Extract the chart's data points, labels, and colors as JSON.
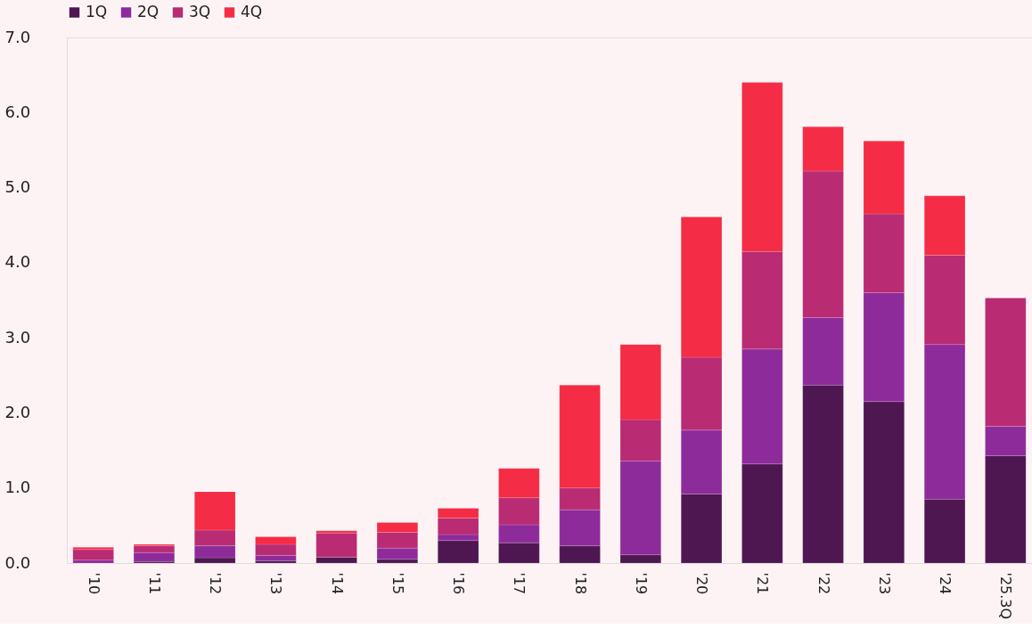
{
  "chart_data": {
    "type": "bar",
    "stacked": true,
    "categories": [
      "'10",
      "'11",
      "'12",
      "'13",
      "'14",
      "'15",
      "'16",
      "'17",
      "'18",
      "'19",
      "'20",
      "'21",
      "'22",
      "'23",
      "'24",
      "'25.3Q"
    ],
    "series": [
      {
        "name": "1Q",
        "color": "#4e1752",
        "values": [
          0,
          0.02,
          0.07,
          0.03,
          0.08,
          0.05,
          0.3,
          0.27,
          0.23,
          0.11,
          0.92,
          1.32,
          2.37,
          2.15,
          0.85,
          1.43
        ]
      },
      {
        "name": "2Q",
        "color": "#8e2b9b",
        "values": [
          0.04,
          0.12,
          0.16,
          0.07,
          0,
          0.15,
          0.08,
          0.24,
          0.48,
          1.25,
          0.85,
          1.53,
          0.9,
          1.45,
          2.06,
          0.39
        ]
      },
      {
        "name": "3Q",
        "color": "#b92b73",
        "values": [
          0.14,
          0.09,
          0.21,
          0.15,
          0.32,
          0.21,
          0.22,
          0.36,
          0.29,
          0.55,
          0.97,
          1.3,
          1.95,
          1.05,
          1.19,
          1.71
        ]
      },
      {
        "name": "4Q",
        "color": "#f52c45",
        "values": [
          0.03,
          0.02,
          0.51,
          0.1,
          0.03,
          0.13,
          0.13,
          0.39,
          1.37,
          1.0,
          1.87,
          2.25,
          0.59,
          0.97,
          0.79,
          null
        ]
      }
    ],
    "ylim": [
      0,
      7.0
    ],
    "yticks": [
      {
        "value": 0,
        "label": "0.0"
      },
      {
        "value": 1,
        "label": "1.0"
      },
      {
        "value": 2,
        "label": "2.0"
      },
      {
        "value": 3,
        "label": "3.0"
      },
      {
        "value": 4,
        "label": "4.0"
      },
      {
        "value": 5,
        "label": "5.0"
      },
      {
        "value": 6,
        "label": "6.0"
      },
      {
        "value": 7,
        "label": "7.0"
      }
    ],
    "grid": false,
    "legend": "top"
  }
}
